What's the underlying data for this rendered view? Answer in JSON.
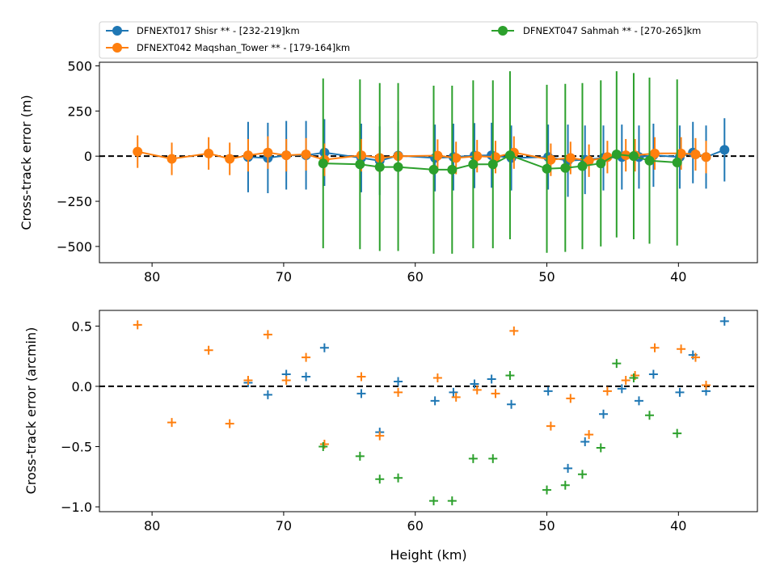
{
  "chart_data": [
    {
      "type": "line",
      "ylabel": "Cross-track error (m)",
      "xlabel": "",
      "xlim": [
        84,
        34
      ],
      "ylim": [
        -590,
        520
      ],
      "xticks": [
        80,
        70,
        60,
        50,
        40
      ],
      "yticks": [
        500,
        250,
        0,
        -250,
        -500
      ],
      "ytick_labels": [
        "500",
        "250",
        "0",
        "−250",
        "−500"
      ],
      "reference_line_y": 0,
      "legend_position": "above plot",
      "series": [
        {
          "name": "DFNEXT017 Shisr **  - [232-219]km",
          "color": "#1f77b4",
          "points": [
            {
              "x": 72.7,
              "y": -5,
              "err": 195
            },
            {
              "x": 71.2,
              "y": -10,
              "err": 195
            },
            {
              "x": 69.8,
              "y": 5,
              "err": 190
            },
            {
              "x": 68.3,
              "y": 5,
              "err": 190
            },
            {
              "x": 66.9,
              "y": 20,
              "err": 185
            },
            {
              "x": 64.1,
              "y": -10,
              "err": 190
            },
            {
              "x": 62.7,
              "y": -25,
              "err": 190
            },
            {
              "x": 61.3,
              "y": 3,
              "err": 190
            },
            {
              "x": 58.5,
              "y": -10,
              "err": 185
            },
            {
              "x": 57.1,
              "y": -5,
              "err": 185
            },
            {
              "x": 55.5,
              "y": 3,
              "err": 180
            },
            {
              "x": 54.2,
              "y": 5,
              "err": 180
            },
            {
              "x": 52.7,
              "y": -10,
              "err": 180
            },
            {
              "x": 49.9,
              "y": -5,
              "err": 180
            },
            {
              "x": 48.4,
              "y": -25,
              "err": 200
            },
            {
              "x": 47.1,
              "y": -20,
              "err": 190
            },
            {
              "x": 45.7,
              "y": -10,
              "err": 180
            },
            {
              "x": 44.3,
              "y": -5,
              "err": 180
            },
            {
              "x": 43.0,
              "y": -5,
              "err": 175
            },
            {
              "x": 41.9,
              "y": 5,
              "err": 175
            },
            {
              "x": 39.9,
              "y": -5,
              "err": 175
            },
            {
              "x": 38.9,
              "y": 20,
              "err": 170
            },
            {
              "x": 37.9,
              "y": -5,
              "err": 175
            },
            {
              "x": 36.5,
              "y": 35,
              "err": 175
            }
          ]
        },
        {
          "name": "DFNEXT042 Maqshan_Tower **  - [179-164]km",
          "color": "#ff7f0e",
          "points": [
            {
              "x": 81.1,
              "y": 25,
              "err": 90
            },
            {
              "x": 78.5,
              "y": -15,
              "err": 90
            },
            {
              "x": 75.7,
              "y": 15,
              "err": 90
            },
            {
              "x": 74.1,
              "y": -15,
              "err": 90
            },
            {
              "x": 72.7,
              "y": 5,
              "err": 90
            },
            {
              "x": 71.2,
              "y": 20,
              "err": 90
            },
            {
              "x": 69.8,
              "y": 5,
              "err": 90
            },
            {
              "x": 68.3,
              "y": 10,
              "err": 90
            },
            {
              "x": 66.9,
              "y": -20,
              "err": 90
            },
            {
              "x": 64.1,
              "y": 5,
              "err": 90
            },
            {
              "x": 62.7,
              "y": -10,
              "err": 90
            },
            {
              "x": 61.3,
              "y": 0,
              "err": 90
            },
            {
              "x": 58.3,
              "y": 3,
              "err": 90
            },
            {
              "x": 56.9,
              "y": -10,
              "err": 90
            },
            {
              "x": 55.3,
              "y": 0,
              "err": 90
            },
            {
              "x": 53.9,
              "y": -5,
              "err": 90
            },
            {
              "x": 52.5,
              "y": 20,
              "err": 90
            },
            {
              "x": 49.7,
              "y": -20,
              "err": 90
            },
            {
              "x": 48.2,
              "y": -10,
              "err": 90
            },
            {
              "x": 46.8,
              "y": -25,
              "err": 90
            },
            {
              "x": 45.4,
              "y": -5,
              "err": 90
            },
            {
              "x": 44.0,
              "y": 5,
              "err": 90
            },
            {
              "x": 43.3,
              "y": 5,
              "err": 90
            },
            {
              "x": 41.8,
              "y": 15,
              "err": 90
            },
            {
              "x": 39.8,
              "y": 15,
              "err": 90
            },
            {
              "x": 38.7,
              "y": 10,
              "err": 90
            },
            {
              "x": 37.9,
              "y": -5,
              "err": 90
            }
          ]
        },
        {
          "name": "DFNEXT047 Sahmah **  - [270-265]km",
          "color": "#2ca02c",
          "points": [
            {
              "x": 67.0,
              "y": -40,
              "err": 470
            },
            {
              "x": 64.2,
              "y": -45,
              "err": 470
            },
            {
              "x": 62.7,
              "y": -60,
              "err": 465
            },
            {
              "x": 61.3,
              "y": -60,
              "err": 465
            },
            {
              "x": 58.6,
              "y": -75,
              "err": 465
            },
            {
              "x": 57.2,
              "y": -75,
              "err": 465
            },
            {
              "x": 55.6,
              "y": -45,
              "err": 465
            },
            {
              "x": 54.1,
              "y": -45,
              "err": 465
            },
            {
              "x": 52.8,
              "y": 5,
              "err": 465
            },
            {
              "x": 50.0,
              "y": -70,
              "err": 465
            },
            {
              "x": 48.6,
              "y": -65,
              "err": 465
            },
            {
              "x": 47.3,
              "y": -55,
              "err": 460
            },
            {
              "x": 45.9,
              "y": -40,
              "err": 460
            },
            {
              "x": 44.7,
              "y": 10,
              "err": 460
            },
            {
              "x": 43.4,
              "y": 0,
              "err": 460
            },
            {
              "x": 42.2,
              "y": -25,
              "err": 460
            },
            {
              "x": 40.1,
              "y": -35,
              "err": 460
            }
          ]
        }
      ]
    },
    {
      "type": "scatter",
      "ylabel": "Cross-track error (arcmin)",
      "xlabel": "Height (km)",
      "xlim": [
        84,
        34
      ],
      "ylim": [
        -1.04,
        0.63
      ],
      "xticks": [
        80,
        70,
        60,
        50,
        40
      ],
      "yticks": [
        0.5,
        0.0,
        -0.5,
        -1.0
      ],
      "ytick_labels": [
        "0.5",
        "0.0",
        "−0.5",
        "−1.0"
      ],
      "reference_line_y": 0,
      "marker": "plus",
      "series": [
        {
          "color": "#1f77b4",
          "points": [
            {
              "x": 72.7,
              "y": 0.03
            },
            {
              "x": 71.2,
              "y": -0.07
            },
            {
              "x": 69.8,
              "y": 0.1
            },
            {
              "x": 68.3,
              "y": 0.08
            },
            {
              "x": 66.9,
              "y": 0.32
            },
            {
              "x": 64.1,
              "y": -0.06
            },
            {
              "x": 62.7,
              "y": -0.38
            },
            {
              "x": 61.3,
              "y": 0.04
            },
            {
              "x": 58.5,
              "y": -0.12
            },
            {
              "x": 57.1,
              "y": -0.05
            },
            {
              "x": 55.5,
              "y": 0.02
            },
            {
              "x": 54.2,
              "y": 0.06
            },
            {
              "x": 52.7,
              "y": -0.15
            },
            {
              "x": 49.9,
              "y": -0.04
            },
            {
              "x": 48.4,
              "y": -0.68
            },
            {
              "x": 47.1,
              "y": -0.46
            },
            {
              "x": 45.7,
              "y": -0.23
            },
            {
              "x": 44.3,
              "y": -0.02
            },
            {
              "x": 43.0,
              "y": -0.12
            },
            {
              "x": 41.9,
              "y": 0.1
            },
            {
              "x": 39.9,
              "y": -0.05
            },
            {
              "x": 38.9,
              "y": 0.26
            },
            {
              "x": 37.9,
              "y": -0.04
            },
            {
              "x": 36.5,
              "y": 0.54
            }
          ]
        },
        {
          "color": "#ff7f0e",
          "points": [
            {
              "x": 81.1,
              "y": 0.51
            },
            {
              "x": 78.5,
              "y": -0.3
            },
            {
              "x": 75.7,
              "y": 0.3
            },
            {
              "x": 74.1,
              "y": -0.31
            },
            {
              "x": 72.7,
              "y": 0.05
            },
            {
              "x": 71.2,
              "y": 0.43
            },
            {
              "x": 69.8,
              "y": 0.05
            },
            {
              "x": 68.3,
              "y": 0.24
            },
            {
              "x": 66.9,
              "y": -0.48
            },
            {
              "x": 64.1,
              "y": 0.08
            },
            {
              "x": 62.7,
              "y": -0.41
            },
            {
              "x": 61.3,
              "y": -0.05
            },
            {
              "x": 58.3,
              "y": 0.07
            },
            {
              "x": 56.9,
              "y": -0.09
            },
            {
              "x": 55.3,
              "y": -0.03
            },
            {
              "x": 53.9,
              "y": -0.06
            },
            {
              "x": 52.5,
              "y": 0.46
            },
            {
              "x": 49.7,
              "y": -0.33
            },
            {
              "x": 48.2,
              "y": -0.1
            },
            {
              "x": 46.8,
              "y": -0.4
            },
            {
              "x": 45.4,
              "y": -0.04
            },
            {
              "x": 44.0,
              "y": 0.05
            },
            {
              "x": 43.3,
              "y": 0.09
            },
            {
              "x": 41.8,
              "y": 0.32
            },
            {
              "x": 39.8,
              "y": 0.31
            },
            {
              "x": 38.7,
              "y": 0.24
            },
            {
              "x": 37.9,
              "y": 0.01
            }
          ]
        },
        {
          "color": "#2ca02c",
          "points": [
            {
              "x": 67.0,
              "y": -0.5
            },
            {
              "x": 64.2,
              "y": -0.58
            },
            {
              "x": 62.7,
              "y": -0.77
            },
            {
              "x": 61.3,
              "y": -0.76
            },
            {
              "x": 58.6,
              "y": -0.95
            },
            {
              "x": 57.2,
              "y": -0.95
            },
            {
              "x": 55.6,
              "y": -0.6
            },
            {
              "x": 54.1,
              "y": -0.6
            },
            {
              "x": 52.8,
              "y": 0.09
            },
            {
              "x": 50.0,
              "y": -0.86
            },
            {
              "x": 48.6,
              "y": -0.82
            },
            {
              "x": 47.3,
              "y": -0.73
            },
            {
              "x": 45.9,
              "y": -0.51
            },
            {
              "x": 44.7,
              "y": 0.19
            },
            {
              "x": 43.4,
              "y": 0.07
            },
            {
              "x": 42.2,
              "y": -0.24
            },
            {
              "x": 40.1,
              "y": -0.39
            }
          ]
        }
      ]
    }
  ]
}
